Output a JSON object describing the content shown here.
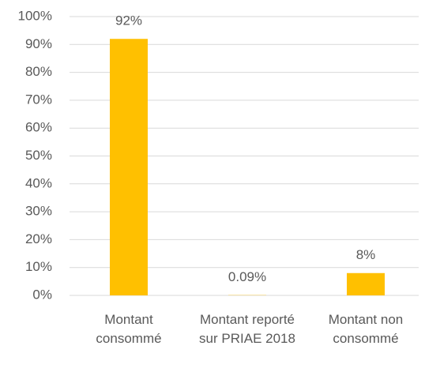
{
  "chart_data": {
    "type": "bar",
    "categories": [
      "Montant consommé",
      "Montant reporté sur PRIAE 2018",
      "Montant non consommé"
    ],
    "values": [
      92,
      0.09,
      8
    ],
    "value_labels": [
      "92%",
      "0.09%",
      "8%"
    ],
    "color": "#ffc000",
    "ylim": [
      0,
      100
    ],
    "yticks": [
      {
        "value": 0,
        "label": "0%"
      },
      {
        "value": 10,
        "label": "10%"
      },
      {
        "value": 20,
        "label": "20%"
      },
      {
        "value": 30,
        "label": "30%"
      },
      {
        "value": 40,
        "label": "40%"
      },
      {
        "value": 50,
        "label": "50%"
      },
      {
        "value": 60,
        "label": "60%"
      },
      {
        "value": 70,
        "label": "70%"
      },
      {
        "value": 80,
        "label": "80%"
      },
      {
        "value": 90,
        "label": "90%"
      },
      {
        "value": 100,
        "label": "100%"
      }
    ],
    "grid": true
  }
}
